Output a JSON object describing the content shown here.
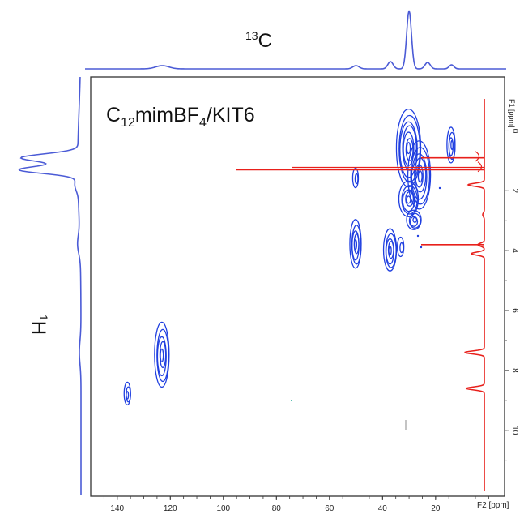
{
  "chart_data": {
    "type": "heatmap",
    "subtype": "2D NMR contour (HETCOR)",
    "sample_label": {
      "main": "C",
      "sub1": "12",
      "mid": "mimBF",
      "sub2": "4",
      "tail": "/KIT6"
    },
    "top_projection_label": {
      "sup": "13",
      "base": "C"
    },
    "left_projection_label": {
      "sup": "1",
      "base": "H"
    },
    "x_axis": {
      "label": "F2 [ppm]",
      "range": [
        150,
        -6
      ],
      "reversed": true,
      "ticks": [
        "140",
        "120",
        "100",
        "80",
        "60",
        "40",
        "20"
      ]
    },
    "y_axis": {
      "label": "F1 [ppm]",
      "range": [
        -1.8,
        12.2
      ],
      "reversed": true,
      "position": "right",
      "ticks": [
        "0",
        "2",
        "4",
        "6",
        "8",
        "10"
      ]
    },
    "grid": false,
    "colors": {
      "contour": "#1f3fe0",
      "projection": "#4b5bd6",
      "proton_trace": "#e8201b",
      "frame": "#333333"
    },
    "carbon_projection_peaks_ppm": [
      123,
      50,
      37,
      30,
      23,
      14
    ],
    "proton_projection_peaks_ppm": [
      0.9,
      1.3,
      1.8,
      2.8,
      3.8,
      4.1,
      7.4,
      8.6
    ],
    "cross_peaks": [
      {
        "c": 30,
        "h": 0.2
      },
      {
        "c": 30,
        "h": 1.3
      },
      {
        "c": 30,
        "h": 2.2
      },
      {
        "c": 28,
        "h": 3.0
      },
      {
        "c": 14,
        "h": 0.5
      },
      {
        "c": 50,
        "h": 1.6
      },
      {
        "c": 50,
        "h": 3.8
      },
      {
        "c": 37,
        "h": 4.0
      },
      {
        "c": 123,
        "h": 7.5
      },
      {
        "c": 136,
        "h": 8.8
      }
    ]
  }
}
